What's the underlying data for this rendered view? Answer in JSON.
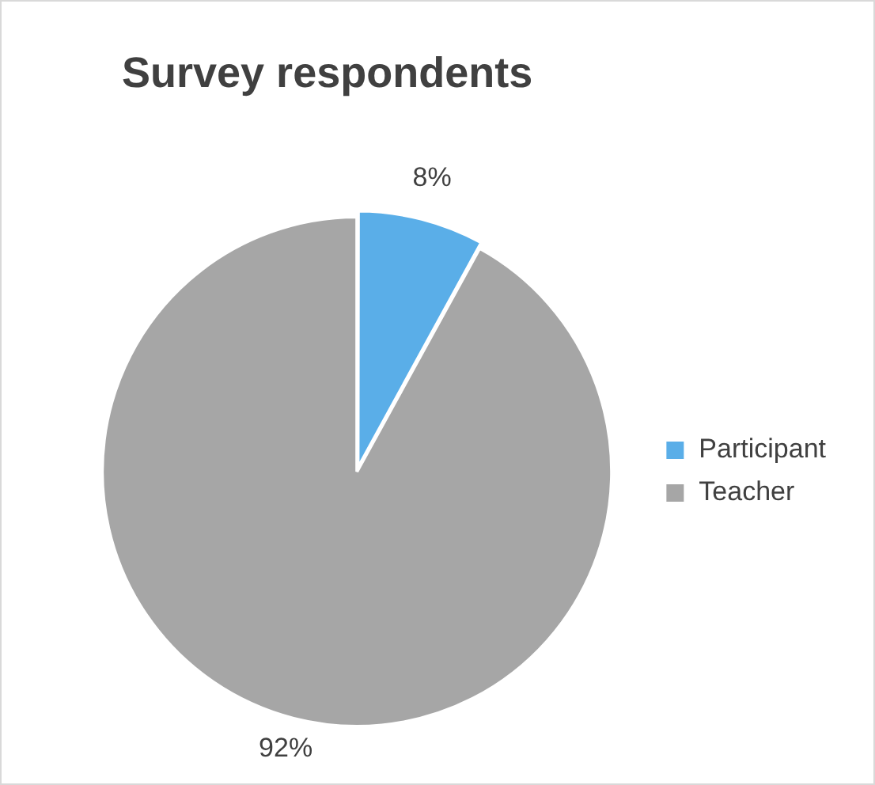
{
  "chart_data": {
    "type": "pie",
    "title": "Survey respondents",
    "categories": [
      "Participant",
      "Teacher"
    ],
    "values": [
      8,
      92
    ],
    "colors": [
      "#5aaee8",
      "#a6a6a6"
    ],
    "value_labels": [
      "8%",
      "92%"
    ],
    "legend": "right"
  }
}
